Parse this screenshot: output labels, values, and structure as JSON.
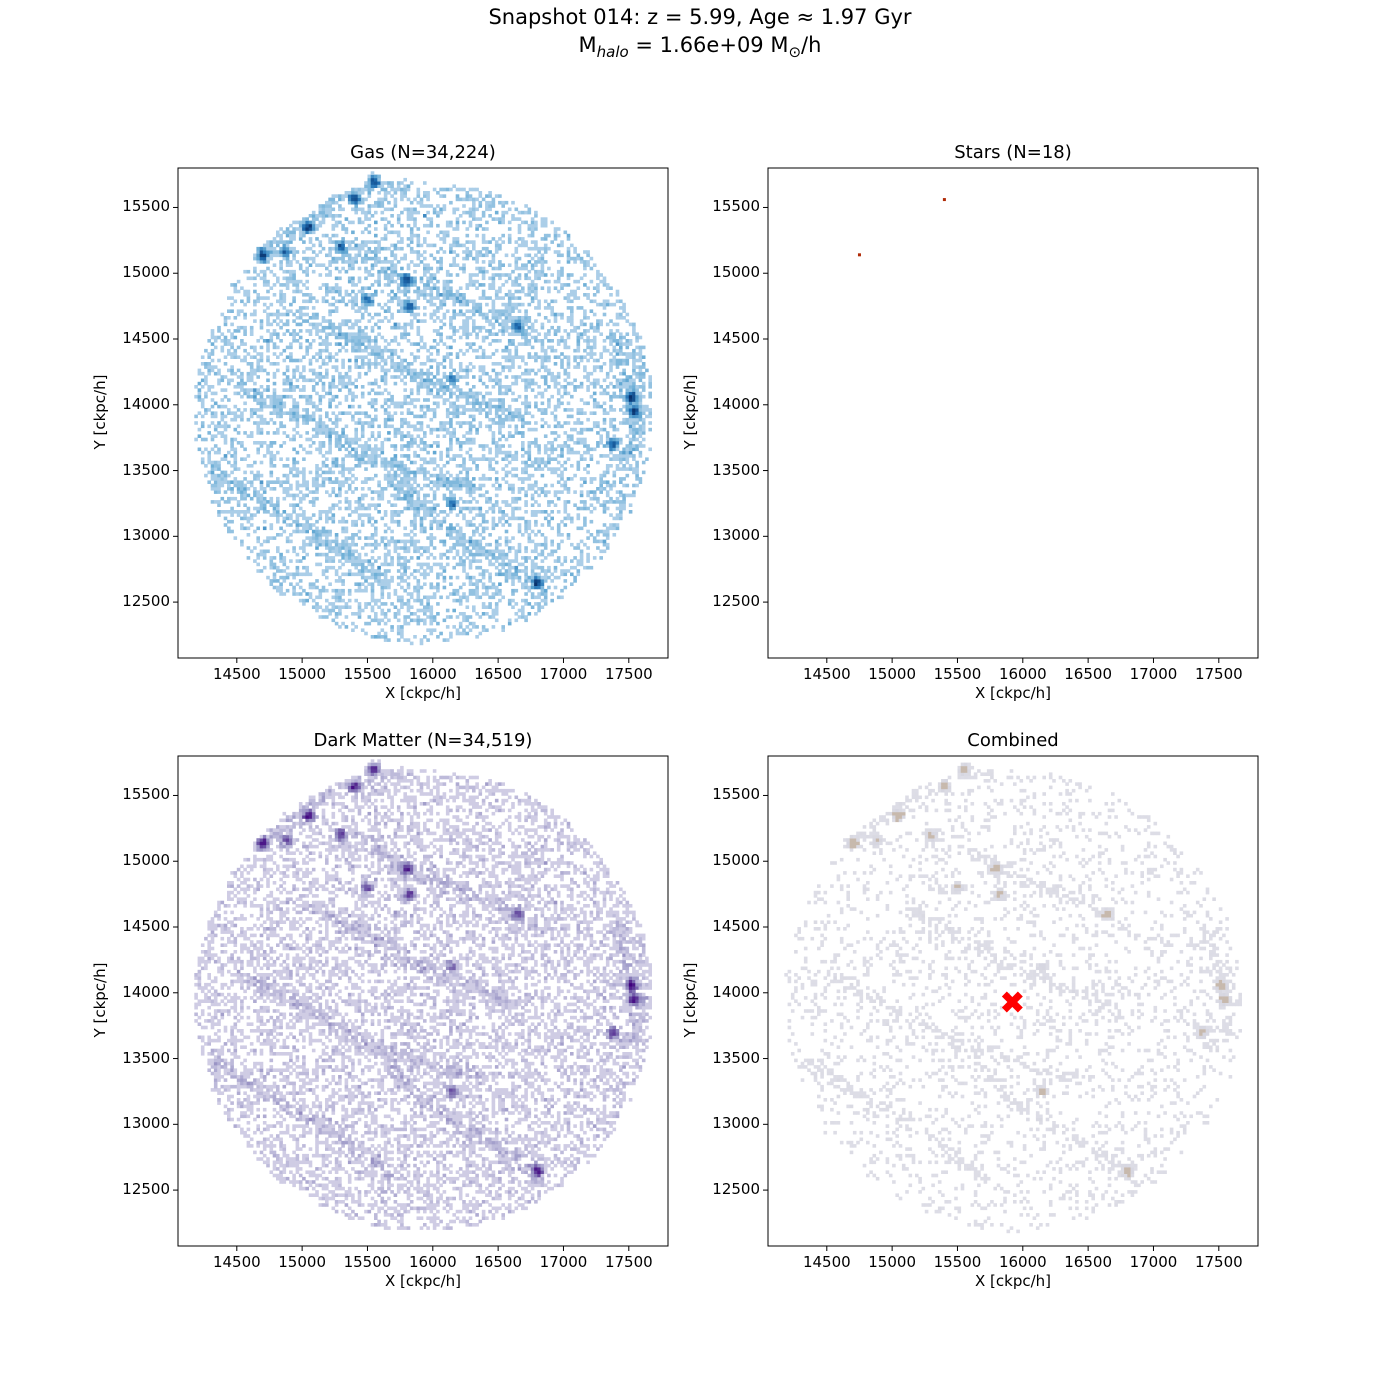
{
  "figure": {
    "title_line1": "Snapshot 014: z = 5.99, Age ≈ 1.97 Gyr",
    "title_mass_prefix": "M",
    "title_mass_sub": "halo",
    "title_mass_mid": " = 1.66e+09 M",
    "title_mass_sun": "⊙",
    "title_mass_suffix": "/h"
  },
  "chart_data": [
    {
      "id": "gas",
      "type": "heatmap",
      "title": "Gas (N=34,224)",
      "xlabel": "X [ckpc/h]",
      "ylabel": "Y [ckpc/h]",
      "xlim": [
        14050,
        17800
      ],
      "ylim": [
        12075,
        15800
      ],
      "xticks": [
        14500,
        15000,
        15500,
        16000,
        16500,
        17000,
        17500
      ],
      "yticks": [
        12500,
        13000,
        13500,
        14000,
        14500,
        15000,
        15500
      ],
      "colormap": [
        "#c6dbef",
        "#6baed6",
        "#2171b5",
        "#08306b"
      ],
      "particle_count": 34224,
      "distribution": "spherical cloud centered at (15930, 13940) with radius about 1750 ckpc/h, with filaments"
    },
    {
      "id": "stars",
      "type": "heatmap",
      "title": "Stars (N=18)",
      "xlabel": "X [ckpc/h]",
      "ylabel": "Y [ckpc/h]",
      "xlim": [
        14050,
        17800
      ],
      "ylim": [
        12075,
        15800
      ],
      "xticks": [
        14500,
        15000,
        15500,
        16000,
        16500,
        17000,
        17500
      ],
      "yticks": [
        12500,
        13000,
        13500,
        14000,
        14500,
        15000,
        15500
      ],
      "colormap": [
        "#b02a06",
        "#7f1a04"
      ],
      "particle_count": 18,
      "points": [
        {
          "x": 14750,
          "y": 15140
        },
        {
          "x": 15400,
          "y": 15560
        }
      ]
    },
    {
      "id": "dm",
      "type": "heatmap",
      "title": "Dark Matter (N=34,519)",
      "xlabel": "X [ckpc/h]",
      "ylabel": "Y [ckpc/h]",
      "xlim": [
        14050,
        17800
      ],
      "ylim": [
        12075,
        15800
      ],
      "xticks": [
        14500,
        15000,
        15500,
        16000,
        16500,
        17000,
        17500
      ],
      "yticks": [
        12500,
        13000,
        13500,
        14000,
        14500,
        15000,
        15500
      ],
      "colormap": [
        "#e2e0ef",
        "#9e9ac8",
        "#6a51a3",
        "#3f007d"
      ],
      "particle_count": 34519,
      "distribution": "spherical cloud centered at (15930, 13940) with radius about 1750 ckpc/h, with halos"
    },
    {
      "id": "combined",
      "type": "heatmap",
      "title": "Combined",
      "xlabel": "X [ckpc/h]",
      "ylabel": "Y [ckpc/h]",
      "xlim": [
        14050,
        17800
      ],
      "ylim": [
        12075,
        15800
      ],
      "xticks": [
        14500,
        15000,
        15500,
        16000,
        16500,
        17000,
        17500
      ],
      "yticks": [
        12500,
        13000,
        13500,
        14000,
        14500,
        15000,
        15500
      ],
      "colormap": [
        "#e3e3ea",
        "#d0d0dc",
        "#c7b9ad"
      ],
      "marker": {
        "x": 15920,
        "y": 13930,
        "symbol": "X",
        "color": "#ff0000"
      }
    }
  ],
  "structures": {
    "filaments": [
      [
        [
          14650,
          15130
        ],
        [
          14850,
          15250
        ],
        [
          15050,
          15400
        ],
        [
          15250,
          15570
        ],
        [
          15400,
          15650
        ],
        [
          15600,
          15700
        ],
        [
          15800,
          15650
        ]
      ],
      [
        [
          15450,
          15200
        ],
        [
          15750,
          14950
        ],
        [
          16150,
          14820
        ],
        [
          16550,
          14650
        ],
        [
          16800,
          14500
        ]
      ],
      [
        [
          17380,
          14550
        ],
        [
          17500,
          14200
        ],
        [
          17600,
          13900
        ],
        [
          17550,
          13700
        ],
        [
          17420,
          13550
        ]
      ],
      [
        [
          15650,
          13500
        ],
        [
          15900,
          13200
        ],
        [
          16300,
          12950
        ],
        [
          16650,
          12750
        ],
        [
          16850,
          12550
        ]
      ],
      [
        [
          14500,
          14150
        ],
        [
          15000,
          13900
        ],
        [
          15500,
          13600
        ],
        [
          16000,
          13450
        ],
        [
          16400,
          13350
        ]
      ],
      [
        [
          15100,
          14650
        ],
        [
          15500,
          14450
        ],
        [
          15900,
          14200
        ],
        [
          16300,
          14050
        ],
        [
          16700,
          13900
        ]
      ],
      [
        [
          14300,
          13500
        ],
        [
          14800,
          13200
        ],
        [
          15300,
          12900
        ],
        [
          15700,
          12600
        ]
      ]
    ],
    "clumps": [
      [
        14700,
        15140,
        6
      ],
      [
        15050,
        15350,
        6
      ],
      [
        15550,
        15700,
        5
      ],
      [
        15400,
        15570,
        5
      ],
      [
        15800,
        14950,
        5
      ],
      [
        15820,
        14750,
        4
      ],
      [
        15500,
        14800,
        3
      ],
      [
        16650,
        14600,
        3
      ],
      [
        17520,
        14060,
        7
      ],
      [
        17540,
        13950,
        6
      ],
      [
        17380,
        13700,
        4
      ],
      [
        16800,
        12650,
        6
      ],
      [
        15300,
        15200,
        4
      ],
      [
        16150,
        13250,
        3
      ],
      [
        16150,
        14200,
        2
      ],
      [
        14880,
        15160,
        3
      ]
    ]
  }
}
